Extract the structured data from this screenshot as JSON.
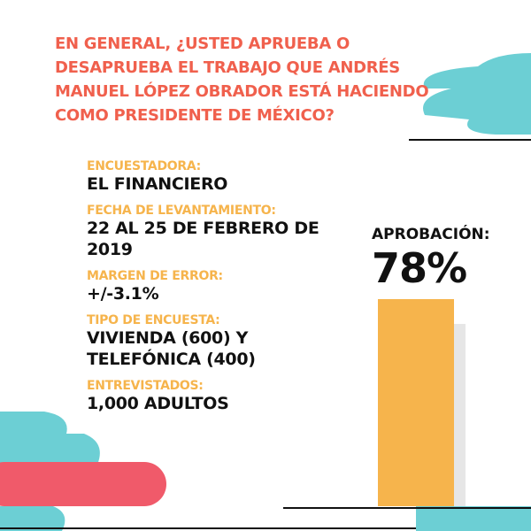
{
  "chart_data": {
    "type": "bar",
    "title": "EN GENERAL, ¿USTED APRUEBA O DESAPRUEBA EL TRABAJO QUE ANDRÉS MANUEL LÓPEZ OBRADOR ESTÁ HACIENDO COMO PRESIDENTE DE MÉXICO?",
    "categories": [
      "APROBACIÓN:"
    ],
    "values": [
      78
    ],
    "value_labels": [
      "78%"
    ],
    "color": "#f6b44c",
    "ylim": [
      0,
      100
    ]
  },
  "details": [
    {
      "label": "ENCUESTADORA:",
      "value": "EL FINANCIERO"
    },
    {
      "label": "FECHA DE LEVANTAMIENTO:",
      "value": "22 AL 25 DE FEBRERO DE 2019"
    },
    {
      "label": "MARGEN DE ERROR:",
      "value": "+/-3.1%"
    },
    {
      "label": "TIPO DE ENCUESTA:",
      "value": "VIVIENDA (600) Y TELEFÓNICA (400)"
    },
    {
      "label": "ENTREVISTADOS:",
      "value": "1,000 ADULTOS"
    }
  ]
}
